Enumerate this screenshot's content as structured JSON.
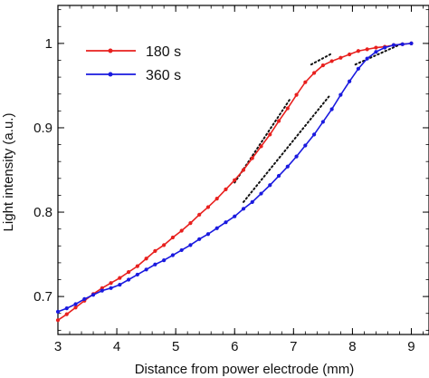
{
  "chart_data": {
    "type": "line",
    "title": "",
    "xlabel": "Distance from power electrode (mm)",
    "ylabel": "Light intensity (a.u.)",
    "xlim": [
      3,
      9.3
    ],
    "ylim": [
      0.655,
      1.045
    ],
    "xticks": [
      "3",
      "4",
      "5",
      "6",
      "7",
      "8",
      "9"
    ],
    "yticks": [
      "0.7",
      "0.8",
      "0.9",
      "1"
    ],
    "grid": false,
    "legend_position": "top-left",
    "series": [
      {
        "name": "180 s",
        "color": "#e8201e",
        "marker": "dot",
        "x": [
          3.0,
          3.15,
          3.3,
          3.45,
          3.6,
          3.75,
          3.9,
          4.05,
          4.2,
          4.35,
          4.5,
          4.65,
          4.8,
          4.95,
          5.1,
          5.25,
          5.4,
          5.55,
          5.7,
          5.85,
          6.0,
          6.15,
          6.3,
          6.45,
          6.6,
          6.75,
          6.9,
          7.05,
          7.2,
          7.35,
          7.5,
          7.65,
          7.8,
          7.95,
          8.1,
          8.25,
          8.4,
          8.55,
          8.7,
          8.85,
          9.0
        ],
        "y": [
          0.672,
          0.679,
          0.687,
          0.695,
          0.703,
          0.71,
          0.716,
          0.722,
          0.729,
          0.736,
          0.745,
          0.754,
          0.761,
          0.77,
          0.778,
          0.787,
          0.797,
          0.806,
          0.816,
          0.827,
          0.838,
          0.85,
          0.864,
          0.878,
          0.892,
          0.908,
          0.923,
          0.939,
          0.954,
          0.965,
          0.974,
          0.979,
          0.983,
          0.987,
          0.991,
          0.993,
          0.995,
          0.996,
          0.998,
          0.999,
          1.0
        ]
      },
      {
        "name": "360 s",
        "color": "#1a1adf",
        "marker": "dot",
        "x": [
          3.0,
          3.15,
          3.3,
          3.45,
          3.6,
          3.75,
          3.9,
          4.05,
          4.2,
          4.35,
          4.5,
          4.65,
          4.8,
          4.95,
          5.1,
          5.25,
          5.4,
          5.55,
          5.7,
          5.85,
          6.0,
          6.15,
          6.3,
          6.45,
          6.6,
          6.75,
          6.9,
          7.05,
          7.2,
          7.35,
          7.5,
          7.65,
          7.8,
          7.95,
          8.1,
          8.25,
          8.4,
          8.55,
          8.7,
          8.85,
          9.0
        ],
        "y": [
          0.682,
          0.686,
          0.691,
          0.697,
          0.702,
          0.707,
          0.71,
          0.714,
          0.72,
          0.726,
          0.732,
          0.738,
          0.743,
          0.749,
          0.755,
          0.761,
          0.768,
          0.774,
          0.781,
          0.788,
          0.795,
          0.804,
          0.812,
          0.822,
          0.832,
          0.843,
          0.854,
          0.866,
          0.879,
          0.892,
          0.907,
          0.922,
          0.939,
          0.955,
          0.97,
          0.982,
          0.99,
          0.995,
          0.998,
          0.999,
          1.0
        ]
      }
    ],
    "fit_lines": [
      {
        "color": "#111111",
        "style": "dotted",
        "x": [
          6.0,
          6.95
        ],
        "y": [
          0.835,
          0.935
        ]
      },
      {
        "color": "#111111",
        "style": "dotted",
        "x": [
          7.3,
          7.65
        ],
        "y": [
          0.975,
          0.988
        ]
      },
      {
        "color": "#111111",
        "style": "dotted",
        "x": [
          6.15,
          7.6
        ],
        "y": [
          0.812,
          0.937
        ]
      },
      {
        "color": "#111111",
        "style": "dotted",
        "x": [
          8.05,
          8.85
        ],
        "y": [
          0.975,
          1.0
        ]
      }
    ]
  }
}
